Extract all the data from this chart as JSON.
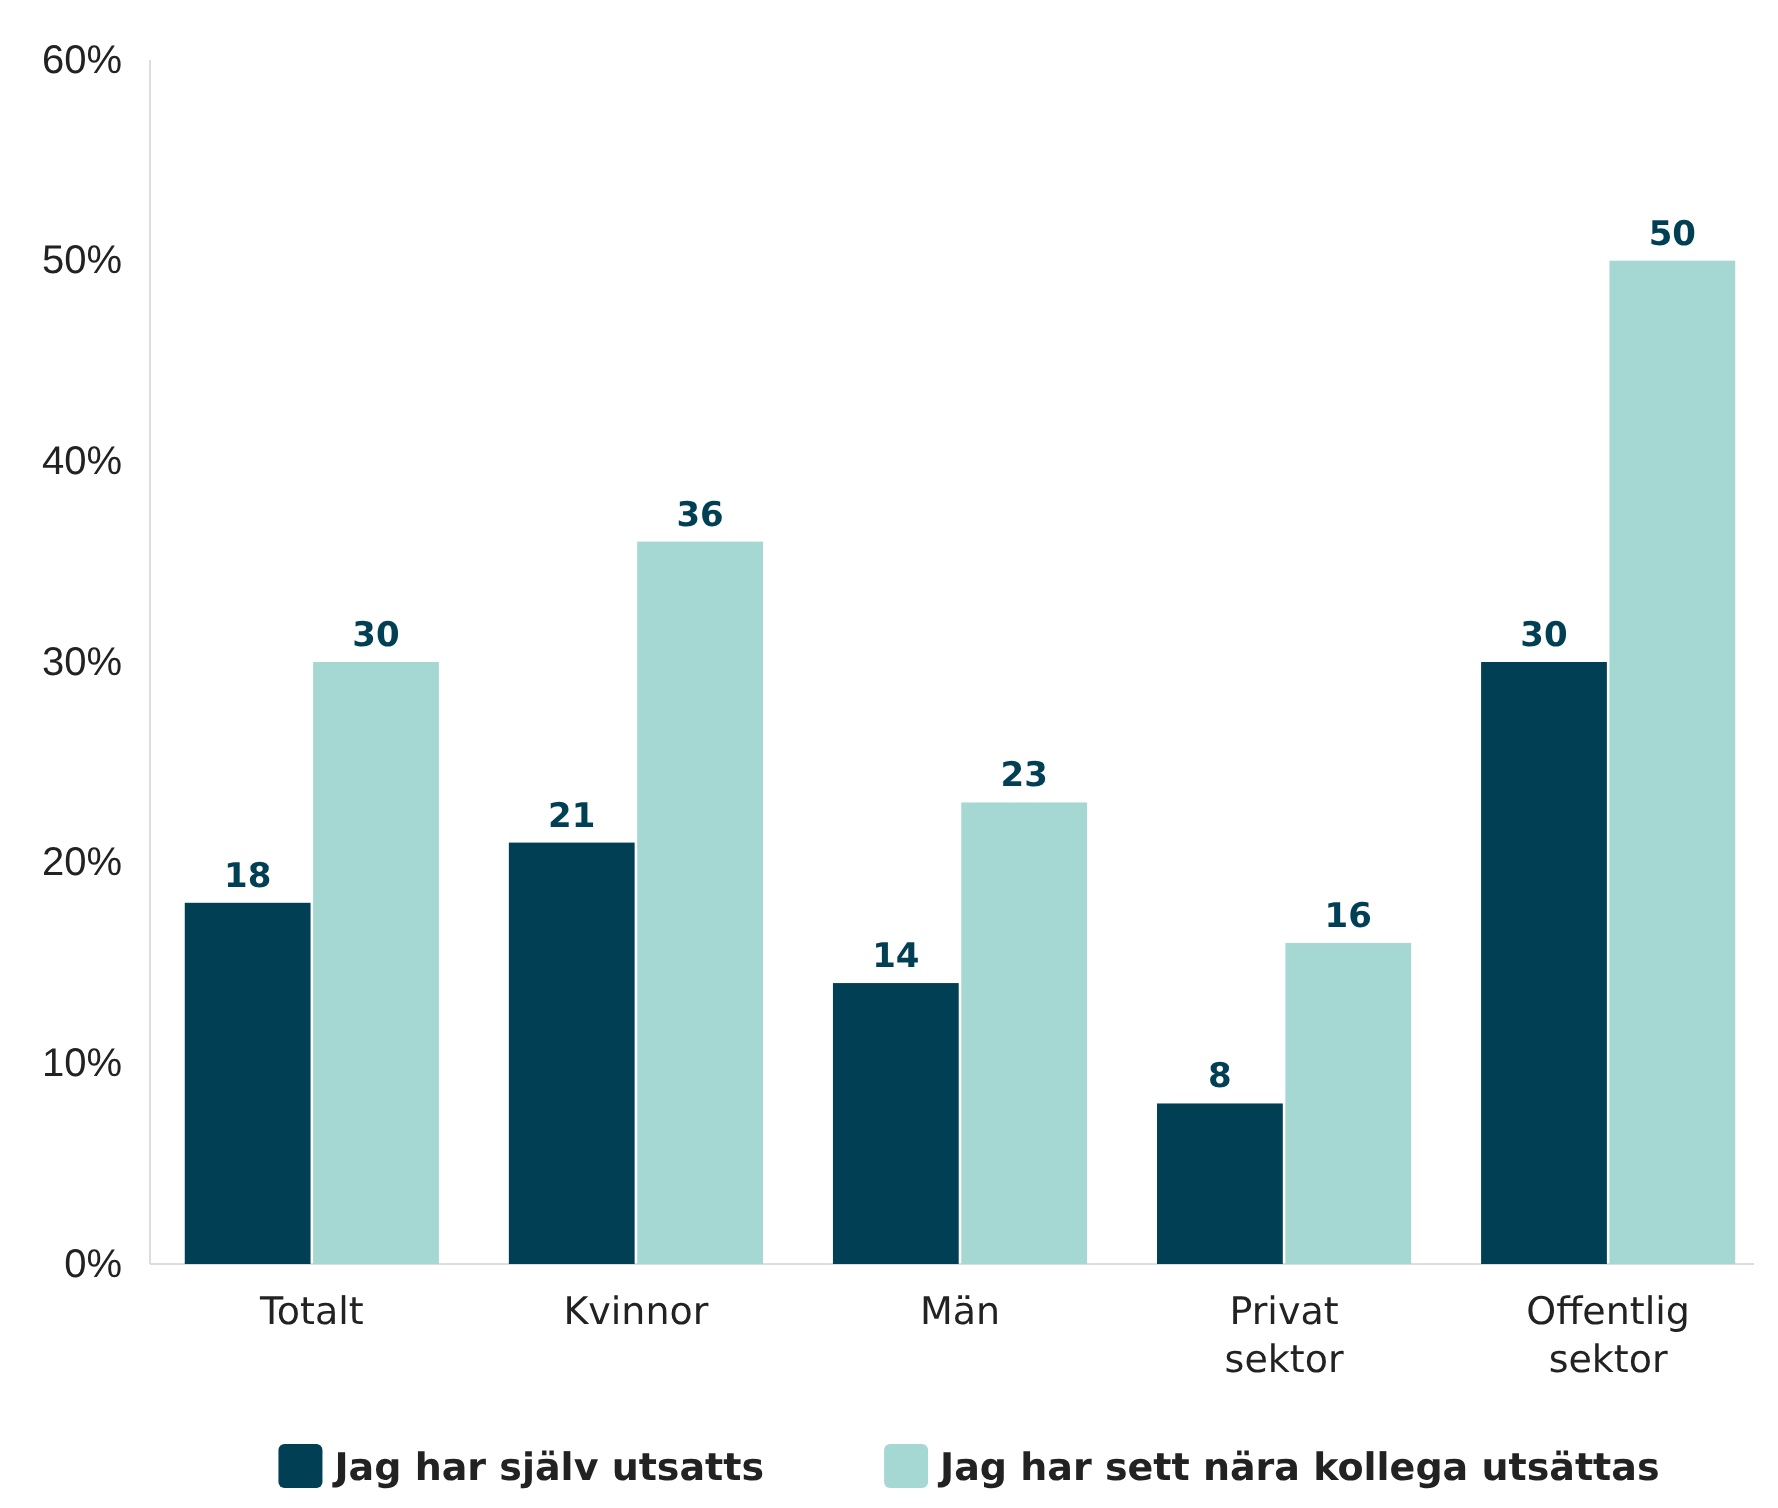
{
  "chart_data": {
    "type": "bar",
    "categories": [
      "Totalt",
      "Kvinnor",
      "Män",
      "Privat sektor",
      "Offentlig sektor"
    ],
    "series": [
      {
        "name": "Jag har själv utsatts",
        "color": "#003f54",
        "values": [
          18,
          21,
          14,
          8,
          30
        ]
      },
      {
        "name": "Jag har sett nära kollega utsättas",
        "color": "#a5d8d3",
        "values": [
          30,
          36,
          23,
          16,
          50
        ]
      }
    ],
    "ylim": [
      0,
      60
    ],
    "yticks": [
      {
        "value": 0,
        "label": "0%"
      },
      {
        "value": 10,
        "label": "10%"
      },
      {
        "value": 20,
        "label": "20%"
      },
      {
        "value": 30,
        "label": "30%"
      },
      {
        "value": 40,
        "label": "40%"
      },
      {
        "value": 50,
        "label": "50%"
      },
      {
        "value": 60,
        "label": "60%"
      }
    ],
    "data_labels": true,
    "grid": false,
    "legend": "bottom"
  }
}
